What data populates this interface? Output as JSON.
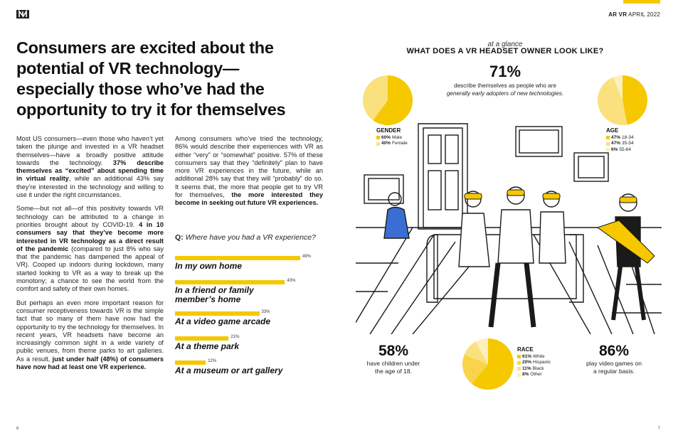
{
  "header": {
    "brand": "AR VR",
    "date": "APRIL 2022"
  },
  "headline": "Consumers are excited about the potential of VR technology—especially those who’ve had the opportunity to try it for themselves",
  "body_left": {
    "p1_a": "Most US consumers—even those who haven’t yet taken the plunge and invested in a VR headset themselves—have a broadly positive attitude towards the technology. ",
    "p1_b": "37% describe themselves as “excited” about spending time in virtual reality",
    "p1_c": ", while an additional 43% say they’re interested in the technology and willing to use it under the right circumstances.",
    "p2_a": "Some—but not all—of this positivity towards VR technology can be attributed to a change in priorities brought about by COVID-19. ",
    "p2_b": "4 in 10 consumers say that they’ve become more interested in VR technology as a direct result of the pandemic",
    "p2_c": " (compared to just 8% who say that the pandemic has dampened the appeal of VR). Cooped up indoors during lockdown, many started looking to VR as a way to break up the monotony; a chance to see the world from the comfort and safety of their own homes.",
    "p3_a": "But perhaps an even more important reason for consumer receptiveness towards VR is the simple fact that so many of them have now had the opportunity to try the technology for themselves. In recent years, VR headsets have become an increasingly common sight in a wide variety of public venues, from theme parks to art galleries. As a result, ",
    "p3_b": "just under half (48%) of consumers have now had at least one VR experience."
  },
  "body_right": {
    "p1_a": "Among consumers who’ve tried the technology, 86% would describe their experiences with VR as either “very” or “somewhat” positive. 57% of these consumers say that they “definitely” plan to have more VR experiences in the future, while an additional 28% say that they will “probably” do so. It seems that, the more that people get to try VR for themselves, ",
    "p1_b": "the more interested they become in seeking out future VR experiences."
  },
  "question": {
    "prefix": "Q:",
    "text": " Where have you had a VR experience?"
  },
  "bars": [
    {
      "label": "In my own home",
      "value": 49,
      "value_label": "49%"
    },
    {
      "label": "In a friend or family member’s home",
      "value": 43,
      "value_label": "43%"
    },
    {
      "label": "At a video game arcade",
      "value": 33,
      "value_label": "33%"
    },
    {
      "label": "At a theme park",
      "value": 21,
      "value_label": "21%"
    },
    {
      "label": "At a museum or art gallery",
      "value": 12,
      "value_label": "12%"
    }
  ],
  "glance": {
    "subtitle": "at a glance",
    "title": "WHAT DOES A VR HEADSET OWNER LOOK LIKE?",
    "stat_value": "71%",
    "stat_line1": "describe themselves as people who are",
    "stat_line2": "generally early adopters of new technologies."
  },
  "gender": {
    "title": "GENDER",
    "items": [
      {
        "pct": "60%",
        "label": "Male",
        "value": 60,
        "color": "#f5c800"
      },
      {
        "pct": "40%",
        "label": "Female",
        "value": 40,
        "color": "#fbe07e"
      }
    ]
  },
  "age": {
    "title": "AGE",
    "items": [
      {
        "pct": "47%",
        "label": "18-34",
        "value": 47,
        "color": "#f5c800"
      },
      {
        "pct": "47%",
        "label": "35-54",
        "value": 47,
        "color": "#fbe07e"
      },
      {
        "pct": "6%",
        "label": "55-64",
        "value": 6,
        "color": "#fdf0bf"
      }
    ]
  },
  "race": {
    "title": "RACE",
    "items": [
      {
        "pct": "61%",
        "label": "White",
        "value": 61,
        "color": "#f5c800"
      },
      {
        "pct": "20%",
        "label": "Hispanic",
        "value": 20,
        "color": "#f9d44a"
      },
      {
        "pct": "11%",
        "label": "Black",
        "value": 11,
        "color": "#fbe07e"
      },
      {
        "pct": "8%",
        "label": "Other",
        "value": 8,
        "color": "#fdf0bf"
      }
    ]
  },
  "stat_children": {
    "value": "58%",
    "line1": "have children under",
    "line2": "the age of 18."
  },
  "stat_games": {
    "value": "86%",
    "line1": "play video games on",
    "line2": "a regular basis."
  },
  "page_left": "6",
  "page_right": "7",
  "colors": {
    "accent": "#f5c800",
    "text": "#1a1a1a"
  }
}
